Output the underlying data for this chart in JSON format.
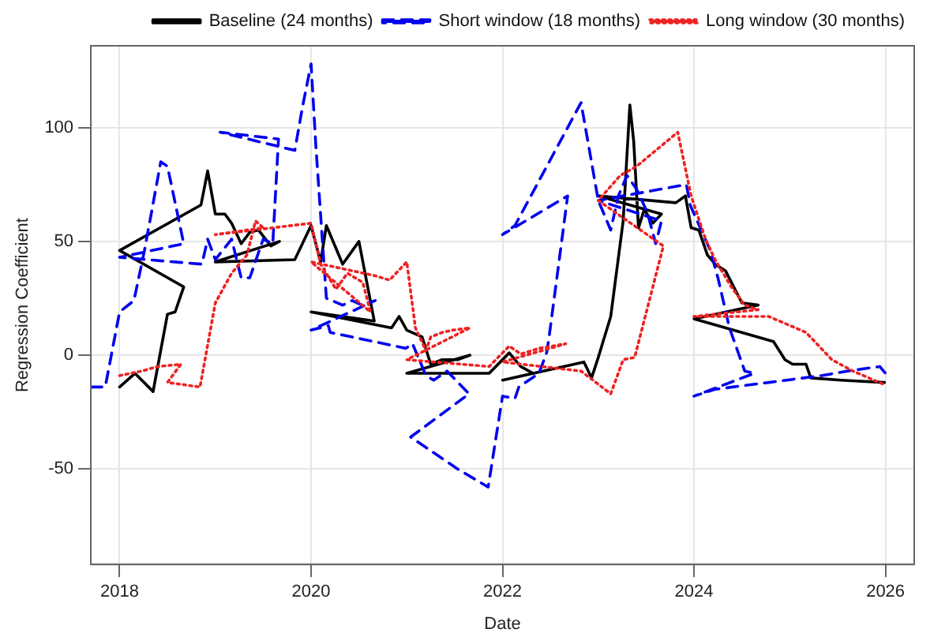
{
  "chart_data": {
    "type": "line",
    "xlabel": "Date",
    "ylabel": "Regression Coefficient",
    "xlim": [
      2017.7,
      2026.3
    ],
    "xticks": [
      2018,
      2020,
      2022,
      2024,
      2026
    ],
    "ylim": [
      -92,
      136
    ],
    "yticks": [
      -50,
      0,
      50,
      100
    ],
    "grid": true,
    "legend": "top right",
    "marker": "none",
    "series": [
      {
        "name": "Baseline (24 months)",
        "color": "#000000",
        "line_style": "solid",
        "x": [
          2018.0,
          2018.16,
          2018.35,
          2018.5,
          2018.58,
          2018.67,
          2018.0,
          2018.85,
          2018.92,
          2019.0,
          2019.1,
          2019.17,
          2019.27,
          2019.36,
          2019.45,
          2019.58,
          2019.67,
          2019.0,
          2019.83,
          2020.0,
          2020.1,
          2020.16,
          2020.33,
          2020.5,
          2020.66,
          2020.0,
          2020.84,
          2020.92,
          2021.0,
          2021.16,
          2021.25,
          2021.37,
          2021.53,
          2021.66,
          2021.0,
          2021.86,
          2022.07,
          2022.19,
          2022.32,
          2022.0,
          2022.85,
          2022.93,
          2023.0,
          2023.13,
          2023.26,
          2023.33,
          2023.37,
          2023.42,
          2023.48,
          2023.57,
          2023.66,
          2023.0,
          2023.81,
          2023.91,
          2023.97,
          2024.05,
          2024.14,
          2024.22,
          2024.33,
          2024.5,
          2024.67,
          2024.0,
          2024.83,
          2024.95,
          2025.03,
          2025.17,
          2025.22,
          2025.54,
          2025.99
        ],
        "values": [
          -14,
          -8,
          -16,
          18,
          19,
          30,
          46,
          66,
          81,
          62,
          62,
          58,
          49,
          54,
          55,
          48,
          50,
          41,
          42,
          57,
          41,
          57,
          40,
          50,
          15,
          19,
          12,
          17,
          11,
          8,
          -4,
          -2,
          -2,
          0,
          -8,
          -8,
          1,
          -5,
          -8,
          -11,
          -3,
          -10,
          -1,
          17,
          59,
          110,
          94,
          56,
          64,
          58,
          62,
          70,
          67,
          70,
          56,
          55,
          44,
          40,
          37,
          23,
          22,
          16,
          6,
          -2,
          -4,
          -4,
          -10,
          -11,
          -12
        ]
      },
      {
        "name": "Short window (18 months)",
        "color": "#0000ee",
        "line_style": "dashed",
        "x": [
          2017.7,
          2017.85,
          2018.0,
          2018.15,
          2018.26,
          2018.43,
          2018.5,
          2018.67,
          2018.0,
          2018.86,
          2018.92,
          2019.0,
          2019.17,
          2019.27,
          2019.36,
          2019.5,
          2019.6,
          2019.66,
          2019.05,
          2019.83,
          2019.91,
          2020.0,
          2020.05,
          2020.16,
          2020.33,
          2020.43,
          2020.53,
          2020.67,
          2020.0,
          2020.18,
          2020.2,
          2020.99,
          2021.06,
          2021.2,
          2021.28,
          2021.42,
          2021.65,
          2021.04,
          2021.53,
          2021.85,
          2022.0,
          2022.13,
          2022.17,
          2022.38,
          2022.46,
          2022.48,
          2022.68,
          2022.0,
          2022.13,
          2022.82,
          2023.0,
          2023.13,
          2023.21,
          2023.3,
          2023.4,
          2023.51,
          2023.6,
          2023.66,
          2023.0,
          2023.92,
          2023.96,
          2024.17,
          2024.25,
          2024.37,
          2024.53,
          2024.63,
          2024.0,
          2024.22,
          2024.78,
          2025.33,
          2025.6,
          2025.94,
          2026.02
        ],
        "values": [
          -14,
          -14,
          19,
          24,
          46,
          85,
          83,
          49,
          43,
          40,
          51,
          42,
          51,
          34,
          34,
          51,
          49,
          95,
          98,
          90,
          109,
          128,
          92,
          25,
          22,
          24,
          22,
          24,
          11,
          13,
          10,
          3,
          5,
          -9,
          -11,
          -7,
          -17,
          -36,
          -50,
          -58,
          -18,
          -19,
          -14,
          -8,
          1,
          6,
          70,
          53,
          57,
          111,
          68,
          55,
          70,
          79,
          73,
          63,
          49,
          59,
          68,
          75,
          66,
          46,
          34,
          12,
          -7,
          -8,
          -18,
          -15,
          -12,
          -9,
          -7,
          -5,
          -9
        ]
      },
      {
        "name": "Long window (30 months)",
        "color": "#ee2222",
        "line_style": "dotted",
        "x": [
          2018.0,
          2018.23,
          2018.4,
          2018.64,
          2018.5,
          2018.84,
          2019.0,
          2019.17,
          2019.33,
          2019.42,
          2019.5,
          2019.0,
          2020.0,
          2020.1,
          2020.26,
          2020.38,
          2020.54,
          2020.62,
          2020.0,
          2020.66,
          2020.82,
          2021.0,
          2021.09,
          2021.2,
          2021.25,
          2021.37,
          2021.48,
          2021.66,
          2021.0,
          2021.86,
          2022.07,
          2022.19,
          2022.38,
          2022.66,
          2022.0,
          2022.82,
          2023.13,
          2023.26,
          2023.38,
          2023.68,
          2023.0,
          2023.23,
          2023.4,
          2023.83,
          2023.97,
          2024.12,
          2024.22,
          2024.39,
          2024.53,
          2024.67,
          2024.0,
          2024.39,
          2024.78,
          2025.17,
          2025.44,
          2025.66,
          2025.99
        ],
        "values": [
          -9,
          -7,
          -5,
          -4,
          -12,
          -14,
          23,
          36,
          44,
          59,
          56,
          53,
          58,
          40,
          29,
          36,
          32,
          19,
          41,
          35,
          33,
          41,
          12,
          2,
          8,
          10,
          11,
          12,
          -2,
          -5,
          4,
          0.5,
          3,
          5,
          -3,
          -7,
          -17,
          -2,
          -1,
          48,
          68,
          79,
          83,
          98,
          70,
          51,
          42,
          30,
          22,
          20,
          17,
          17,
          17,
          10,
          -2,
          -7,
          -13
        ]
      }
    ]
  }
}
